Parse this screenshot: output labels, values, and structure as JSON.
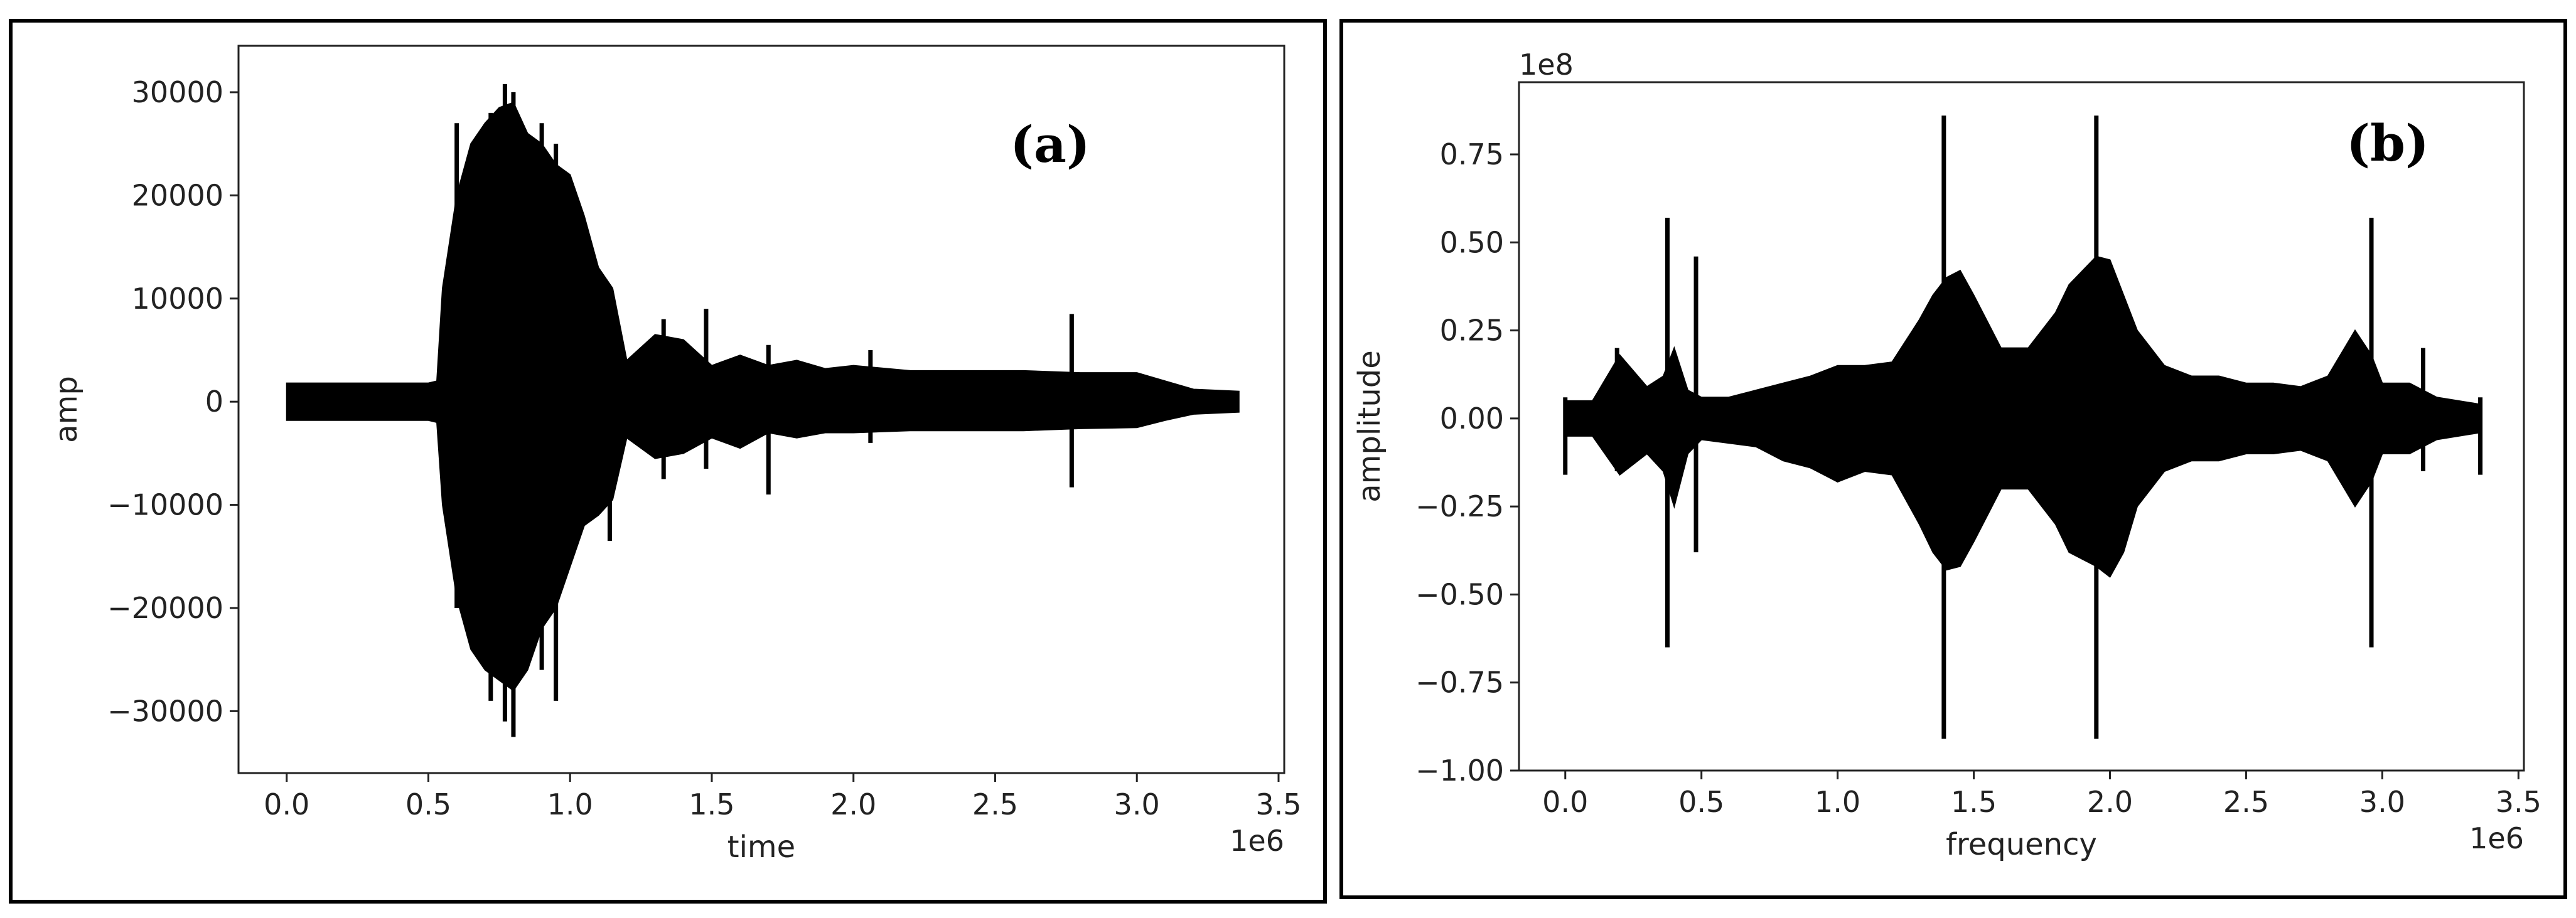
{
  "chart_data": [
    {
      "type": "line",
      "panel_label": "(a)",
      "xlabel": "time",
      "ylabel": "amp",
      "x_offset_text": "1e6",
      "y_offset_text": "",
      "xlim": [
        -0.17,
        3.52
      ],
      "ylim": [
        -36000,
        34500
      ],
      "xticks": [
        0.0,
        0.5,
        1.0,
        1.5,
        2.0,
        2.5,
        3.0,
        3.5
      ],
      "xtick_labels": [
        "0.0",
        "0.5",
        "1.0",
        "1.5",
        "2.0",
        "2.5",
        "3.0",
        "3.5"
      ],
      "yticks": [
        30000,
        20000,
        10000,
        0,
        -10000,
        -20000,
        -30000
      ],
      "ytick_labels": [
        "30000",
        "20000",
        "10000",
        "0",
        "−10000",
        "−20000",
        "−30000"
      ],
      "color": "#000000",
      "envelope": {
        "x": [
          0.0,
          0.5,
          0.53,
          0.55,
          0.6,
          0.65,
          0.7,
          0.75,
          0.8,
          0.85,
          0.9,
          0.95,
          1.0,
          1.05,
          1.1,
          1.15,
          1.2,
          1.3,
          1.4,
          1.5,
          1.6,
          1.7,
          1.8,
          1.9,
          2.0,
          2.2,
          2.4,
          2.6,
          2.8,
          3.0,
          3.1,
          3.2,
          3.36
        ],
        "upper": [
          1800,
          1800,
          2000,
          11000,
          20000,
          25000,
          27000,
          28500,
          29000,
          26000,
          25000,
          23000,
          22000,
          18000,
          13000,
          11000,
          4000,
          6500,
          6000,
          3500,
          4500,
          3500,
          4000,
          3200,
          3500,
          3000,
          3000,
          3000,
          2800,
          2800,
          2000,
          1200,
          1000
        ],
        "lower": [
          -1800,
          -1800,
          -2000,
          -10000,
          -19000,
          -24000,
          -26000,
          -27000,
          -28000,
          -26000,
          -22000,
          -20000,
          -16000,
          -12000,
          -11000,
          -9500,
          -3500,
          -5500,
          -5000,
          -3500,
          -4500,
          -3000,
          -3500,
          -3000,
          -3000,
          -2800,
          -2800,
          -2800,
          -2600,
          -2500,
          -1800,
          -1200,
          -1000
        ]
      },
      "spikes": [
        {
          "x": 0.6,
          "upper": 27000,
          "lower": -20000
        },
        {
          "x": 0.72,
          "upper": 28000,
          "lower": -29000
        },
        {
          "x": 0.77,
          "upper": 30800,
          "lower": -31000
        },
        {
          "x": 0.8,
          "upper": 30000,
          "lower": -32500
        },
        {
          "x": 0.9,
          "upper": 27000,
          "lower": -26000
        },
        {
          "x": 0.95,
          "upper": 25000,
          "lower": -29000
        },
        {
          "x": 1.14,
          "upper": 10000,
          "lower": -13500
        },
        {
          "x": 1.33,
          "upper": 8000,
          "lower": -7500
        },
        {
          "x": 1.48,
          "upper": 9000,
          "lower": -6500
        },
        {
          "x": 1.7,
          "upper": 5500,
          "lower": -9000
        },
        {
          "x": 2.06,
          "upper": 5000,
          "lower": -4000
        },
        {
          "x": 2.77,
          "upper": 8500,
          "lower": -8300
        }
      ]
    },
    {
      "type": "line",
      "panel_label": "(b)",
      "xlabel": "frequency",
      "ylabel": "amplitude",
      "x_offset_text": "1e6",
      "y_offset_text": "1e8",
      "xlim": [
        -0.17,
        3.52
      ],
      "ylim": [
        -1.0,
        0.955
      ],
      "xticks": [
        0.0,
        0.5,
        1.0,
        1.5,
        2.0,
        2.5,
        3.0,
        3.5
      ],
      "xtick_labels": [
        "0.0",
        "0.5",
        "1.0",
        "1.5",
        "2.0",
        "2.5",
        "3.0",
        "3.5"
      ],
      "yticks": [
        0.75,
        0.5,
        0.25,
        0.0,
        -0.25,
        -0.5,
        -0.75,
        -1.0
      ],
      "ytick_labels": [
        "0.75",
        "0.50",
        "0.25",
        "0.00",
        "−0.25",
        "−0.50",
        "−0.75",
        "−1.00"
      ],
      "color": "#000000",
      "envelope": {
        "x": [
          0.0,
          0.1,
          0.2,
          0.3,
          0.36,
          0.4,
          0.45,
          0.5,
          0.6,
          0.7,
          0.8,
          0.9,
          1.0,
          1.1,
          1.2,
          1.3,
          1.35,
          1.4,
          1.45,
          1.5,
          1.6,
          1.7,
          1.8,
          1.85,
          1.9,
          1.95,
          2.0,
          2.05,
          2.1,
          2.2,
          2.3,
          2.4,
          2.5,
          2.6,
          2.7,
          2.8,
          2.9,
          2.96,
          3.0,
          3.1,
          3.2,
          3.36
        ],
        "upper": [
          0.05,
          0.05,
          0.18,
          0.09,
          0.12,
          0.2,
          0.08,
          0.06,
          0.06,
          0.08,
          0.1,
          0.12,
          0.15,
          0.15,
          0.16,
          0.28,
          0.35,
          0.4,
          0.42,
          0.35,
          0.2,
          0.2,
          0.3,
          0.38,
          0.42,
          0.46,
          0.45,
          0.35,
          0.25,
          0.15,
          0.12,
          0.12,
          0.1,
          0.1,
          0.09,
          0.12,
          0.25,
          0.18,
          0.1,
          0.1,
          0.06,
          0.04
        ],
        "lower": [
          -0.05,
          -0.05,
          -0.16,
          -0.1,
          -0.15,
          -0.25,
          -0.1,
          -0.06,
          -0.07,
          -0.08,
          -0.12,
          -0.14,
          -0.18,
          -0.15,
          -0.16,
          -0.3,
          -0.38,
          -0.43,
          -0.42,
          -0.35,
          -0.2,
          -0.2,
          -0.3,
          -0.38,
          -0.4,
          -0.42,
          -0.45,
          -0.38,
          -0.25,
          -0.15,
          -0.12,
          -0.12,
          -0.1,
          -0.1,
          -0.09,
          -0.12,
          -0.25,
          -0.18,
          -0.1,
          -0.1,
          -0.06,
          -0.04
        ]
      },
      "spikes": [
        {
          "x": 0.0,
          "upper": 0.06,
          "lower": -0.16
        },
        {
          "x": 0.19,
          "upper": 0.2,
          "lower": -0.15
        },
        {
          "x": 0.375,
          "upper": 0.57,
          "lower": -0.65
        },
        {
          "x": 0.48,
          "upper": 0.46,
          "lower": -0.38
        },
        {
          "x": 1.39,
          "upper": 0.86,
          "lower": -0.91
        },
        {
          "x": 1.95,
          "upper": 0.86,
          "lower": -0.91
        },
        {
          "x": 2.96,
          "upper": 0.57,
          "lower": -0.65
        },
        {
          "x": 3.15,
          "upper": 0.2,
          "lower": -0.15
        },
        {
          "x": 3.36,
          "upper": 0.06,
          "lower": -0.16
        }
      ]
    }
  ]
}
